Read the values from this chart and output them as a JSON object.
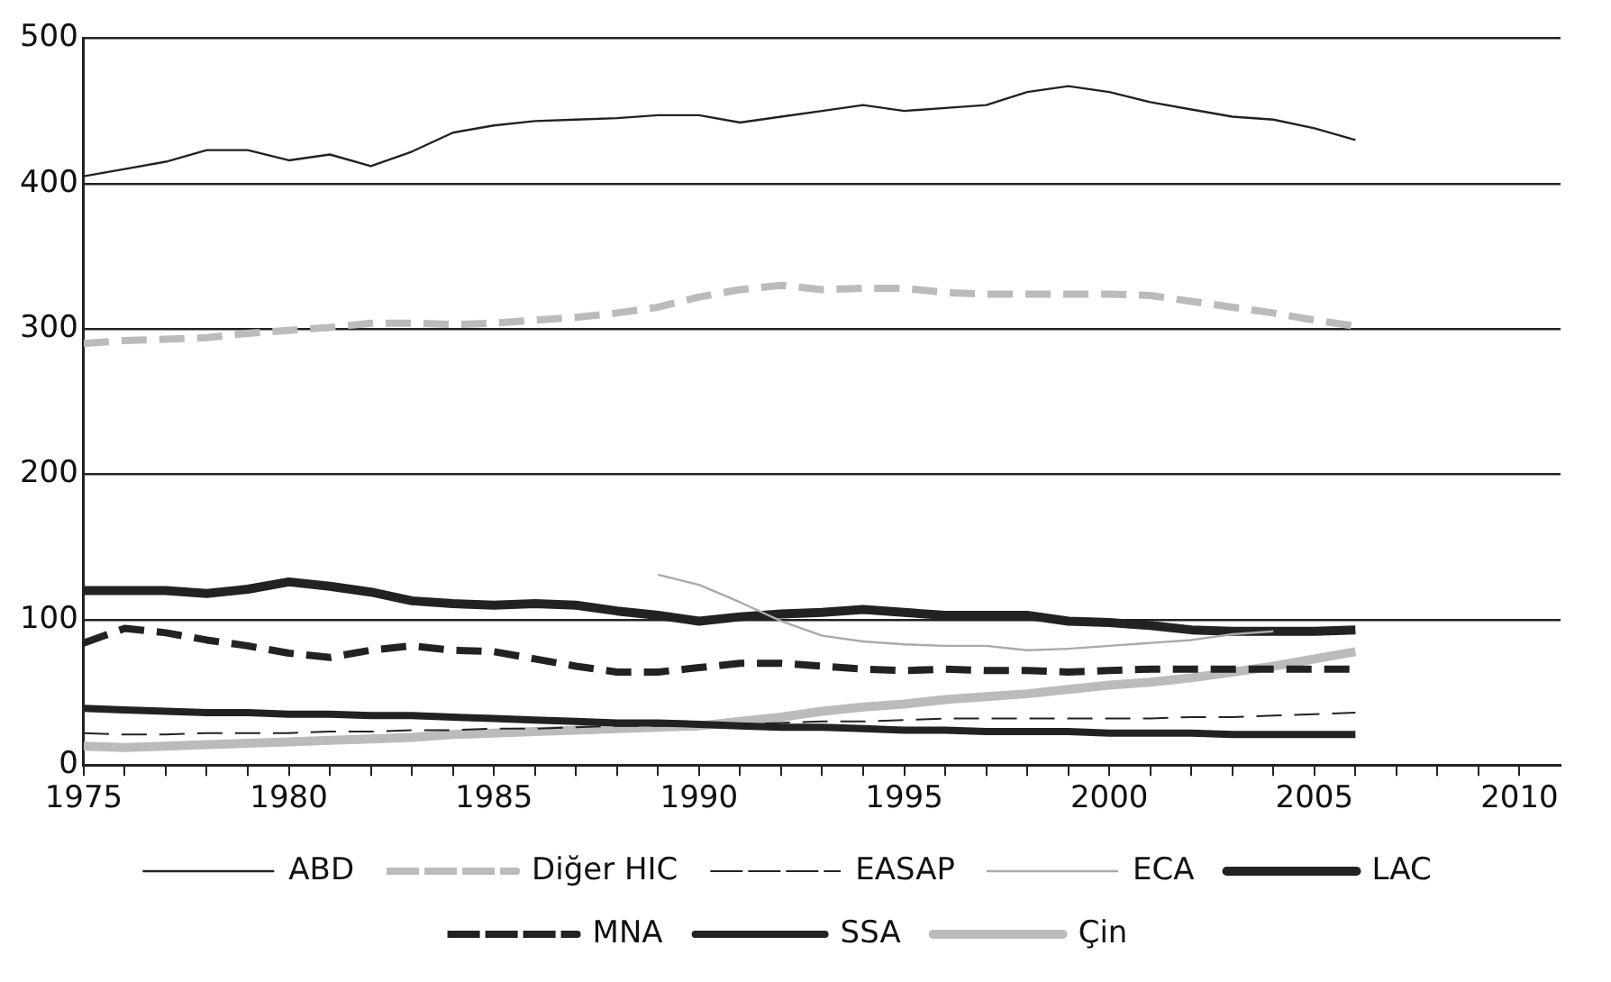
{
  "chart_data": {
    "type": "line",
    "x": [
      1975,
      1976,
      1977,
      1978,
      1979,
      1980,
      1981,
      1982,
      1983,
      1984,
      1985,
      1986,
      1987,
      1988,
      1989,
      1990,
      1991,
      1992,
      1993,
      1994,
      1995,
      1996,
      1997,
      1998,
      1999,
      2000,
      2001,
      2002,
      2003,
      2004,
      2005,
      2006
    ],
    "xlim": [
      1975,
      2011
    ],
    "xticks": [
      1975,
      {
        "value": 1976,
        "label": null
      },
      {
        "value": 1977,
        "label": null
      },
      {
        "value": 1978,
        "label": null
      },
      {
        "value": 1979,
        "label": null
      },
      1980,
      {
        "value": 1981,
        "label": null
      },
      {
        "value": 1982,
        "label": null
      },
      {
        "value": 1983,
        "label": null
      },
      {
        "value": 1984,
        "label": null
      },
      1985,
      {
        "value": 1986,
        "label": null
      },
      {
        "value": 1987,
        "label": null
      },
      {
        "value": 1988,
        "label": null
      },
      {
        "value": 1989,
        "label": null
      },
      1990,
      {
        "value": 1991,
        "label": null
      },
      {
        "value": 1992,
        "label": null
      },
      {
        "value": 1993,
        "label": null
      },
      {
        "value": 1994,
        "label": null
      },
      1995,
      {
        "value": 1996,
        "label": null
      },
      {
        "value": 1997,
        "label": null
      },
      {
        "value": 1998,
        "label": null
      },
      {
        "value": 1999,
        "label": null
      },
      2000,
      {
        "value": 2001,
        "label": null
      },
      {
        "value": 2002,
        "label": null
      },
      {
        "value": 2003,
        "label": null
      },
      {
        "value": 2004,
        "label": null
      },
      2005,
      {
        "value": 2006,
        "label": null
      },
      {
        "value": 2007,
        "label": null
      },
      {
        "value": 2008,
        "label": null
      },
      {
        "value": 2009,
        "label": null
      },
      2010
    ],
    "ylim": [
      0,
      500
    ],
    "yticks": [
      0,
      100,
      200,
      300,
      400,
      500
    ],
    "grid": "y",
    "legend": "bottom",
    "marker": "none",
    "series": [
      {
        "name": "ABD",
        "color": "#222222",
        "line_style": "solid",
        "values": [
          405,
          410,
          415,
          423,
          423,
          416,
          420,
          412,
          422,
          435,
          440,
          443,
          444,
          445,
          447,
          447,
          442,
          446,
          450,
          454,
          450,
          452,
          454,
          463,
          467,
          463,
          456,
          451,
          446,
          444,
          438,
          430
        ]
      },
      {
        "name": "Diğer HIC",
        "color": "#bbbbbb",
        "line_style": "dashed",
        "values": [
          290,
          292,
          293,
          294,
          297,
          299,
          301,
          304,
          304,
          303,
          304,
          306,
          308,
          311,
          315,
          322,
          327,
          330,
          327,
          328,
          328,
          325,
          324,
          324,
          324,
          324,
          323,
          319,
          315,
          311,
          306,
          302
        ]
      },
      {
        "name": "EASAP",
        "color": "#222222",
        "line_style": "dashed",
        "values": [
          22,
          21,
          21,
          22,
          22,
          22,
          23,
          23,
          24,
          24,
          25,
          25,
          26,
          27,
          27,
          28,
          28,
          29,
          30,
          30,
          31,
          32,
          32,
          32,
          32,
          32,
          32,
          33,
          33,
          34,
          35,
          36
        ]
      },
      {
        "name": "ECA",
        "color": "#aaaaaa",
        "line_style": "solid",
        "values": [
          null,
          null,
          null,
          null,
          null,
          null,
          null,
          null,
          null,
          null,
          null,
          null,
          null,
          null,
          131,
          124,
          112,
          99,
          89,
          85,
          83,
          82,
          82,
          79,
          80,
          82,
          84,
          86,
          90,
          92,
          null,
          null
        ]
      },
      {
        "name": "LAC",
        "color": "#222222",
        "line_style": "solid",
        "values": [
          120,
          120,
          120,
          118,
          121,
          126,
          123,
          119,
          113,
          111,
          110,
          111,
          110,
          106,
          103,
          99,
          102,
          104,
          105,
          107,
          105,
          103,
          103,
          103,
          99,
          98,
          96,
          93,
          92,
          92,
          92,
          93
        ]
      },
      {
        "name": "MNA",
        "color": "#222222",
        "line_style": "dashed",
        "values": [
          84,
          94,
          91,
          86,
          82,
          77,
          74,
          79,
          82,
          79,
          78,
          73,
          68,
          64,
          64,
          67,
          70,
          70,
          68,
          66,
          65,
          66,
          65,
          65,
          64,
          65,
          66,
          66,
          66,
          66,
          66,
          66
        ]
      },
      {
        "name": "SSA",
        "color": "#222222",
        "line_style": "solid",
        "values": [
          39,
          38,
          37,
          36,
          36,
          35,
          35,
          34,
          34,
          33,
          32,
          31,
          30,
          29,
          29,
          28,
          27,
          26,
          26,
          25,
          24,
          24,
          23,
          23,
          23,
          22,
          22,
          22,
          21,
          21,
          21,
          21
        ]
      },
      {
        "name": "Çin",
        "color": "#bbbbbb",
        "line_style": "solid",
        "values": [
          13,
          12,
          13,
          14,
          15,
          16,
          17,
          18,
          19,
          21,
          22,
          23,
          24,
          25,
          26,
          27,
          30,
          33,
          37,
          40,
          42,
          45,
          47,
          49,
          52,
          55,
          57,
          60,
          64,
          68,
          73,
          78
        ]
      }
    ]
  }
}
